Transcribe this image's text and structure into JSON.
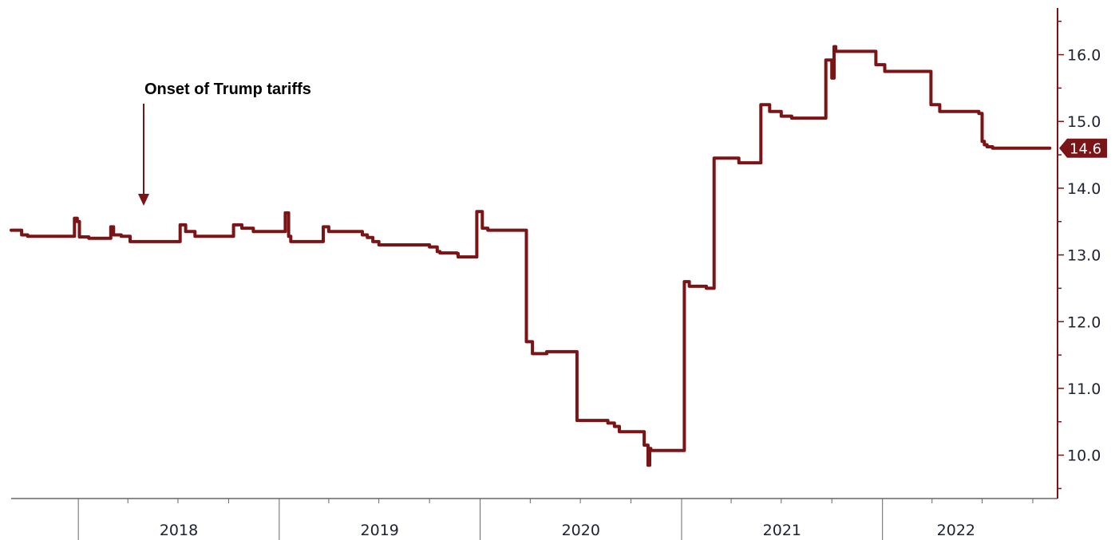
{
  "chart_data": {
    "type": "line",
    "title": "",
    "xlabel": "",
    "ylabel": "",
    "ylim": [
      9.35,
      16.7
    ],
    "xlim": [
      "2017-09-01",
      "2022-11-15"
    ],
    "y_ticks": [
      10.0,
      11.0,
      12.0,
      13.0,
      14.0,
      15.0,
      16.0
    ],
    "y_tick_labels": [
      "10.0",
      "11.0",
      "12.0",
      "13.0",
      "14.0",
      "15.0",
      "16.0"
    ],
    "y_axis_side": "right",
    "x_year_labels": [
      "2018",
      "2019",
      "2020",
      "2021",
      "2022"
    ],
    "grid": false,
    "colors": {
      "line": "#7b1416",
      "axis": "#7b1416",
      "badge": "#7b1416"
    },
    "last_value_label": "14.6",
    "annotation": {
      "text": "Onset of Trump tariffs",
      "date": "2018-07-01"
    },
    "series": [
      {
        "x": [
          "2017-09-01",
          "2017-09-10",
          "2017-09-20",
          "2017-10-01",
          "2017-12-20",
          "2017-12-25",
          "2017-12-30",
          "2018-01-03",
          "2018-01-20",
          "2018-02-20",
          "2018-03-01",
          "2018-03-06",
          "2018-03-20",
          "2018-04-05",
          "2018-06-30",
          "2018-07-05",
          "2018-07-15",
          "2018-08-01",
          "2018-10-05",
          "2018-10-10",
          "2018-10-25",
          "2018-11-15",
          "2019-01-05",
          "2019-01-12",
          "2019-01-18",
          "2019-01-22",
          "2019-02-10",
          "2019-03-15",
          "2019-03-22",
          "2019-04-01",
          "2019-06-01",
          "2019-06-10",
          "2019-06-20",
          "2019-07-01",
          "2019-10-01",
          "2019-10-15",
          "2019-10-20",
          "2019-11-20",
          "2019-11-22",
          "2019-12-20",
          "2019-12-26",
          "2020-01-05",
          "2020-01-15",
          "2020-03-20",
          "2020-03-25",
          "2020-04-05",
          "2020-05-01",
          "2020-06-20",
          "2020-06-25",
          "2020-08-20",
          "2020-09-01",
          "2020-09-10",
          "2020-10-20",
          "2020-10-25",
          "2020-11-01",
          "2020-11-04",
          "2020-11-06",
          "2020-11-10",
          "2020-12-31",
          "2021-01-06",
          "2021-01-15",
          "2021-02-15",
          "2021-02-20",
          "2021-03-01",
          "2021-04-15",
          "2021-05-20",
          "2021-05-25",
          "2021-06-10",
          "2021-07-01",
          "2021-07-20",
          "2021-08-01",
          "2021-09-15",
          "2021-09-20",
          "2021-10-01",
          "2021-10-05",
          "2021-10-08",
          "2021-10-12",
          "2021-12-15",
          "2021-12-20",
          "2022-01-05",
          "2022-03-25",
          "2022-03-30",
          "2022-04-15",
          "2022-06-25",
          "2022-06-28",
          "2022-07-01",
          "2022-07-05",
          "2022-07-10",
          "2022-07-20",
          "2022-09-30",
          "2022-10-03",
          "2022-10-20",
          "2022-11-01"
        ],
        "values": [
          13.37,
          13.37,
          13.3,
          13.28,
          13.28,
          13.55,
          13.5,
          13.27,
          13.25,
          13.25,
          13.42,
          13.3,
          13.28,
          13.2,
          13.2,
          13.45,
          13.35,
          13.28,
          13.28,
          13.45,
          13.4,
          13.35,
          13.35,
          13.63,
          13.28,
          13.2,
          13.2,
          13.2,
          13.42,
          13.35,
          13.3,
          13.26,
          13.2,
          13.15,
          13.12,
          13.05,
          13.03,
          13.02,
          12.97,
          12.97,
          13.65,
          13.4,
          13.37,
          13.37,
          11.7,
          11.52,
          11.55,
          11.55,
          10.52,
          10.48,
          10.43,
          10.35,
          10.35,
          10.15,
          9.85,
          10.1,
          10.07,
          10.07,
          10.07,
          12.6,
          12.53,
          12.5,
          12.5,
          14.45,
          14.38,
          14.38,
          15.25,
          15.15,
          15.08,
          15.05,
          15.05,
          15.05,
          15.92,
          15.65,
          16.12,
          16.05,
          16.05,
          16.05,
          15.85,
          15.75,
          15.75,
          15.25,
          15.15,
          15.12,
          15.12,
          14.7,
          14.65,
          14.62,
          14.6,
          14.6,
          14.6,
          14.6,
          14.6
        ]
      }
    ]
  }
}
